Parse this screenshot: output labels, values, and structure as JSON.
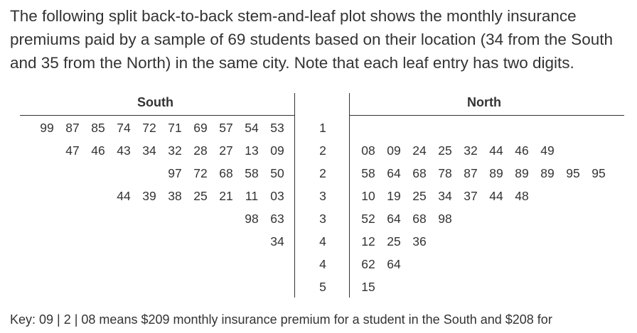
{
  "intro": "The following split back-to-back stem-and-leaf plot shows the monthly insurance premiums paid by a sample of 69 students based on their location (34 from the South and 35 from the North) in the same city. Note that each leaf entry has two digits.",
  "headers": {
    "south": "South",
    "north": "North"
  },
  "rows": [
    {
      "stem": "1",
      "south": [
        "99",
        "87",
        "85",
        "74",
        "72",
        "71",
        "69",
        "57",
        "54",
        "53"
      ],
      "north": []
    },
    {
      "stem": "2",
      "south": [
        "47",
        "46",
        "43",
        "34",
        "32",
        "28",
        "27",
        "13",
        "09"
      ],
      "north": [
        "08",
        "09",
        "24",
        "25",
        "32",
        "44",
        "46",
        "49"
      ]
    },
    {
      "stem": "2",
      "south": [
        "97",
        "72",
        "68",
        "58",
        "50"
      ],
      "north": [
        "58",
        "64",
        "68",
        "78",
        "87",
        "89",
        "89",
        "89",
        "95",
        "95"
      ]
    },
    {
      "stem": "3",
      "south": [
        "44",
        "39",
        "38",
        "25",
        "21",
        "11",
        "03"
      ],
      "north": [
        "10",
        "19",
        "25",
        "34",
        "37",
        "44",
        "48"
      ]
    },
    {
      "stem": "3",
      "south": [
        "98",
        "63"
      ],
      "north": [
        "52",
        "64",
        "68",
        "98"
      ]
    },
    {
      "stem": "4",
      "south": [
        "34"
      ],
      "north": [
        "12",
        "25",
        "36"
      ]
    },
    {
      "stem": "4",
      "south": [],
      "north": [
        "62",
        "64"
      ]
    },
    {
      "stem": "5",
      "south": [],
      "north": [
        "15"
      ]
    }
  ],
  "key": "Key: 09 | 2 | 08 means $209 monthly insurance premium for a student in the South and $208 for"
}
